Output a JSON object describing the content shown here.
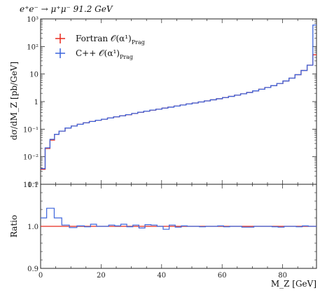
{
  "chart_data": [
    {
      "type": "line",
      "title": "e⁺e⁻ → μ⁺μ⁻ 91.2 GeV",
      "xlabel": "M_Z [GeV]",
      "ylabel": "dσ/dM_Z [pb/GeV]",
      "yscale": "log",
      "xlim": [
        0,
        91.2
      ],
      "ylim": [
        0.001,
        1000
      ],
      "y_tick_labels": [
        "10⁻³",
        "10⁻²",
        "10⁻¹",
        "1",
        "10",
        "10²",
        "10³"
      ],
      "legend_position": "top-left",
      "x_edges": [
        0,
        1.5,
        3.1,
        4.6,
        6.1,
        8.1,
        10.1,
        12.1,
        14.1,
        16.1,
        18.1,
        20.1,
        22.1,
        24.1,
        26.1,
        28.1,
        30.1,
        32.1,
        34.1,
        36.1,
        38.1,
        40.1,
        42.1,
        44.1,
        46.1,
        48.1,
        50.1,
        52.1,
        54.1,
        56.1,
        58.1,
        60.1,
        62.1,
        64.1,
        66.1,
        68.1,
        70.1,
        72.1,
        74.1,
        76.1,
        78.1,
        80.1,
        82.1,
        84.1,
        86.1,
        88.1,
        90.0,
        91.2
      ],
      "series": [
        {
          "name": "Fortran 𝒪(α¹)",
          "color": "#e8291c",
          "values": [
            0.0035,
            0.02,
            0.04,
            0.065,
            0.085,
            0.11,
            0.13,
            0.15,
            0.17,
            0.19,
            0.21,
            0.23,
            0.255,
            0.28,
            0.305,
            0.335,
            0.37,
            0.41,
            0.45,
            0.49,
            0.53,
            0.58,
            0.63,
            0.69,
            0.75,
            0.82,
            0.89,
            0.97,
            1.06,
            1.16,
            1.27,
            1.4,
            1.55,
            1.72,
            1.92,
            2.15,
            2.45,
            2.8,
            3.25,
            3.8,
            4.55,
            5.6,
            7.1,
            9.5,
            13.5,
            21,
            50
          ]
        },
        {
          "name": "C++ 𝒪(α¹)",
          "color": "#3c64dc",
          "values": [
            0.0037,
            0.021,
            0.043,
            0.065,
            0.085,
            0.11,
            0.13,
            0.15,
            0.17,
            0.19,
            0.21,
            0.23,
            0.255,
            0.28,
            0.306,
            0.336,
            0.372,
            0.412,
            0.45,
            0.491,
            0.53,
            0.582,
            0.628,
            0.69,
            0.752,
            0.82,
            0.89,
            0.97,
            1.06,
            1.16,
            1.27,
            1.4,
            1.545,
            1.72,
            1.92,
            2.15,
            2.45,
            2.8,
            3.25,
            3.8,
            4.55,
            5.6,
            7.1,
            9.5,
            13.5,
            21,
            600
          ]
        }
      ]
    },
    {
      "type": "line",
      "title": "",
      "xlabel": "M_Z [GeV]",
      "ylabel": "Ratio",
      "xlim": [
        0,
        91.2
      ],
      "ylim": [
        0.9,
        1.1
      ],
      "x_ticks": [
        0,
        20,
        40,
        60,
        80
      ],
      "y_ticks": [
        0.9,
        1.0,
        1.1
      ],
      "y_tick_labels": [
        "0.9",
        "1.0",
        "1.1"
      ],
      "x_edges": [
        0,
        2,
        4.5,
        7,
        9.5,
        12,
        14.5,
        16.5,
        18.5,
        20.5,
        22.5,
        24.5,
        26.5,
        28.5,
        30.5,
        32.5,
        34.5,
        36.5,
        38.5,
        40.5,
        42.5,
        44.5,
        46.5,
        48.5,
        50.5,
        52.5,
        54.5,
        56.5,
        58.5,
        60.5,
        62.5,
        64.5,
        66.5,
        68.5,
        70.5,
        72.5,
        74.5,
        76.5,
        78.5,
        80.5,
        82.5,
        84.5,
        86.5,
        88.5,
        91.2
      ],
      "series": [
        {
          "name": "Fortran 𝒪(α¹)",
          "color": "#e8291c",
          "values": [
            1.0,
            1.0,
            1.0,
            1.0,
            1.0,
            1.0,
            1.0,
            1.0,
            1.0,
            1.0,
            1.0,
            1.0,
            1.0,
            1.0,
            1.0,
            1.0,
            1.0,
            1.0,
            1.0,
            1.0,
            1.0,
            1.0,
            1.0,
            1.0,
            1.0,
            1.0,
            1.0,
            1.0,
            1.0,
            1.0,
            1.0,
            1.0,
            1.0,
            1.0,
            1.0,
            1.0,
            1.0,
            1.0,
            1.0,
            1.0,
            1.0,
            1.0,
            1.0,
            1.0
          ]
        },
        {
          "name": "C++ 𝒪(α¹)",
          "color": "#3c64dc",
          "values": [
            1.02,
            1.043,
            1.02,
            1.003,
            0.997,
            1.001,
            0.999,
            1.005,
            1.0,
            1.0,
            1.003,
            1.001,
            1.005,
            0.999,
            1.003,
            0.996,
            1.004,
            1.003,
            1.0,
            0.993,
            1.003,
            0.998,
            1.001,
            1.0,
            1.0,
            0.999,
            1.0,
            1.0,
            1.001,
            0.999,
            1.0,
            1.0,
            0.998,
            0.998,
            1.0,
            1.0,
            1.0,
            0.999,
            0.998,
            1.0,
            1.0,
            0.999,
            1.001,
            1.0
          ]
        }
      ]
    }
  ],
  "legend": {
    "entries": [
      {
        "label": "Fortran 𝒪(α¹)",
        "sub": "Prag",
        "color": "#e8291c"
      },
      {
        "label": "C++ 𝒪(α¹)",
        "sub": "Prag",
        "color": "#3c64dc"
      }
    ]
  }
}
